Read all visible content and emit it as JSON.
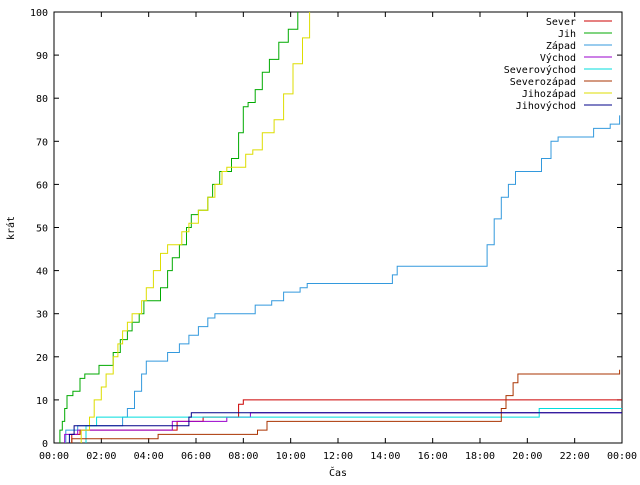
{
  "chart_data": {
    "type": "line",
    "step": true,
    "xlabel": "Čas",
    "ylabel": "krát",
    "xlim": [
      0,
      24
    ],
    "ylim": [
      0,
      100
    ],
    "x_ticks": [
      0,
      2,
      4,
      6,
      8,
      10,
      12,
      14,
      16,
      18,
      20,
      22,
      24
    ],
    "x_tick_labels": [
      "00:00",
      "02:00",
      "04:00",
      "06:00",
      "08:00",
      "10:00",
      "12:00",
      "14:00",
      "16:00",
      "18:00",
      "20:00",
      "22:00",
      "00:00"
    ],
    "y_ticks": [
      0,
      10,
      20,
      30,
      40,
      50,
      60,
      70,
      80,
      90,
      100
    ],
    "grid": false,
    "legend_position": "top-right",
    "series": [
      {
        "name": "Sever",
        "color": "#cc0000",
        "points": [
          [
            0.75,
            0
          ],
          [
            0.75,
            2
          ],
          [
            1.1,
            2
          ],
          [
            1.1,
            3
          ],
          [
            4.5,
            3
          ],
          [
            4.5,
            3
          ],
          [
            5.2,
            3
          ],
          [
            5.2,
            5
          ],
          [
            6.3,
            5
          ],
          [
            6.3,
            6
          ],
          [
            7.8,
            6
          ],
          [
            7.8,
            9
          ],
          [
            8.0,
            9
          ],
          [
            8.0,
            10
          ],
          [
            24,
            10
          ]
        ]
      },
      {
        "name": "Jih",
        "color": "#00aa00",
        "points": [
          [
            0.25,
            0
          ],
          [
            0.25,
            3
          ],
          [
            0.35,
            5
          ],
          [
            0.45,
            8
          ],
          [
            0.55,
            11
          ],
          [
            0.8,
            12
          ],
          [
            1.1,
            15
          ],
          [
            1.3,
            16
          ],
          [
            1.8,
            16
          ],
          [
            1.9,
            18
          ],
          [
            2.3,
            18
          ],
          [
            2.5,
            21
          ],
          [
            2.8,
            24
          ],
          [
            3.1,
            26
          ],
          [
            3.3,
            28
          ],
          [
            3.6,
            30
          ],
          [
            3.8,
            33
          ],
          [
            4.4,
            33
          ],
          [
            4.5,
            36
          ],
          [
            4.8,
            40
          ],
          [
            5.0,
            43
          ],
          [
            5.3,
            46
          ],
          [
            5.6,
            50
          ],
          [
            5.8,
            53
          ],
          [
            6.1,
            54
          ],
          [
            6.5,
            57
          ],
          [
            6.7,
            60
          ],
          [
            7.0,
            63
          ],
          [
            7.3,
            63
          ],
          [
            7.5,
            66
          ],
          [
            7.8,
            72
          ],
          [
            8.0,
            78
          ],
          [
            8.2,
            79
          ],
          [
            8.5,
            82
          ],
          [
            8.8,
            86
          ],
          [
            9.1,
            89
          ],
          [
            9.5,
            93
          ],
          [
            9.9,
            96
          ],
          [
            10.3,
            100
          ]
        ]
      },
      {
        "name": "Západ",
        "color": "#3399dd",
        "points": [
          [
            0.5,
            0
          ],
          [
            0.5,
            3
          ],
          [
            1.0,
            4
          ],
          [
            2.7,
            4
          ],
          [
            2.9,
            6
          ],
          [
            3.1,
            8
          ],
          [
            3.4,
            12
          ],
          [
            3.7,
            16
          ],
          [
            3.9,
            19
          ],
          [
            4.5,
            19
          ],
          [
            4.8,
            21
          ],
          [
            5.3,
            23
          ],
          [
            5.7,
            25
          ],
          [
            6.1,
            27
          ],
          [
            6.5,
            29
          ],
          [
            6.8,
            30
          ],
          [
            8.2,
            30
          ],
          [
            8.5,
            32
          ],
          [
            9.2,
            33
          ],
          [
            9.7,
            35
          ],
          [
            10.4,
            36
          ],
          [
            10.7,
            37
          ],
          [
            14.0,
            37
          ],
          [
            14.3,
            39
          ],
          [
            14.5,
            41
          ],
          [
            18.1,
            41
          ],
          [
            18.3,
            46
          ],
          [
            18.6,
            52
          ],
          [
            18.9,
            57
          ],
          [
            19.2,
            60
          ],
          [
            19.5,
            63
          ],
          [
            20.3,
            63
          ],
          [
            20.6,
            66
          ],
          [
            21.0,
            70
          ],
          [
            21.3,
            71
          ],
          [
            22.6,
            71
          ],
          [
            22.8,
            73
          ],
          [
            23.5,
            74
          ],
          [
            23.9,
            76
          ]
        ]
      },
      {
        "name": "Východ",
        "color": "#9900cc",
        "points": [
          [
            0.45,
            0
          ],
          [
            0.45,
            2
          ],
          [
            1.0,
            2
          ],
          [
            1.0,
            3
          ],
          [
            5.0,
            3
          ],
          [
            5.0,
            5
          ],
          [
            7.3,
            5
          ],
          [
            7.3,
            6
          ],
          [
            8.3,
            6
          ],
          [
            8.3,
            7
          ],
          [
            24,
            7
          ]
        ]
      },
      {
        "name": "Severovýchod",
        "color": "#00dddd",
        "points": [
          [
            1.35,
            0
          ],
          [
            1.35,
            4
          ],
          [
            1.8,
            4
          ],
          [
            1.8,
            6
          ],
          [
            20.5,
            6
          ],
          [
            20.5,
            8
          ],
          [
            24,
            8
          ]
        ]
      },
      {
        "name": "Severozápad",
        "color": "#aa3300",
        "points": [
          [
            0.75,
            0
          ],
          [
            0.75,
            1
          ],
          [
            4.4,
            1
          ],
          [
            4.4,
            2
          ],
          [
            8.6,
            2
          ],
          [
            8.6,
            3
          ],
          [
            9.0,
            5
          ],
          [
            18.8,
            5
          ],
          [
            18.9,
            8
          ],
          [
            19.1,
            11
          ],
          [
            19.4,
            14
          ],
          [
            19.6,
            16
          ],
          [
            23.9,
            16
          ],
          [
            23.9,
            17
          ]
        ]
      },
      {
        "name": "Jihozápad",
        "color": "#dddd00",
        "points": [
          [
            1.15,
            0
          ],
          [
            1.15,
            3
          ],
          [
            1.5,
            6
          ],
          [
            1.7,
            10
          ],
          [
            2.0,
            13
          ],
          [
            2.2,
            16
          ],
          [
            2.5,
            20
          ],
          [
            2.7,
            23
          ],
          [
            2.9,
            26
          ],
          [
            3.1,
            28
          ],
          [
            3.3,
            30
          ],
          [
            3.7,
            33
          ],
          [
            3.9,
            36
          ],
          [
            4.2,
            40
          ],
          [
            4.5,
            44
          ],
          [
            4.8,
            46
          ],
          [
            5.2,
            46
          ],
          [
            5.4,
            49
          ],
          [
            5.7,
            51
          ],
          [
            6.1,
            54
          ],
          [
            6.5,
            57
          ],
          [
            6.8,
            60
          ],
          [
            7.1,
            63
          ],
          [
            7.3,
            64
          ],
          [
            7.9,
            64
          ],
          [
            8.1,
            67
          ],
          [
            8.4,
            68
          ],
          [
            8.8,
            72
          ],
          [
            9.3,
            75
          ],
          [
            9.7,
            81
          ],
          [
            10.1,
            88
          ],
          [
            10.5,
            94
          ],
          [
            10.8,
            100
          ]
        ]
      },
      {
        "name": "Jihovýchod",
        "color": "#000088",
        "points": [
          [
            0.65,
            0
          ],
          [
            0.65,
            2
          ],
          [
            0.85,
            4
          ],
          [
            5.7,
            4
          ],
          [
            5.7,
            6
          ],
          [
            5.8,
            7
          ],
          [
            24,
            7
          ]
        ]
      }
    ]
  }
}
